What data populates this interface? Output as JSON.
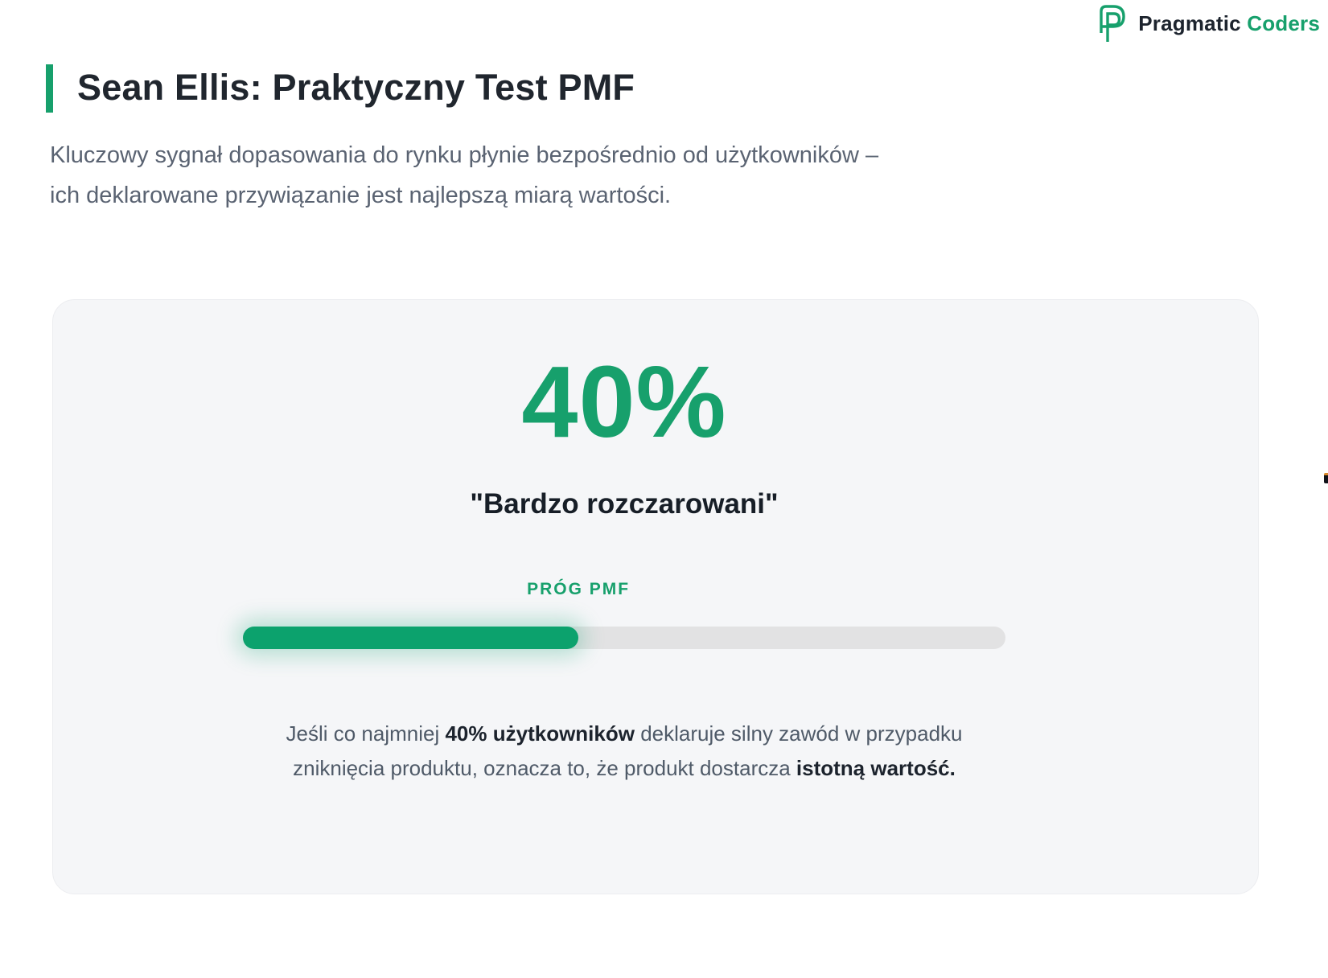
{
  "brand": {
    "name_primary": "Pragmatic",
    "name_secondary": "Coders",
    "logo_icon": "pragmatic-coders-p-monogram"
  },
  "header": {
    "title": "Sean Ellis: Praktyczny Test PMF",
    "subtitle_line1": "Kluczowy sygnał dopasowania do rynku płynie bezpośrednio od użytkowników –",
    "subtitle_line2": "ich deklarowane przywiązanie jest najlepszą miarą wartości."
  },
  "card": {
    "stat_value": "40%",
    "stat_label": "\"Bardzo rozczarowani\"",
    "threshold_label": "PRÓG PMF",
    "progress": {
      "fill_percent": 44,
      "threshold_percent": 40
    },
    "description": {
      "part1": "Jeśli co najmniej ",
      "bold1": "40% użytkowników",
      "part2": " deklaruje silny zawód w przypadku zniknięcia produktu, oznacza to, że produkt dostarcza ",
      "bold2": "istotną wartość."
    }
  },
  "colors": {
    "accent": "#17a06c",
    "bar": "#0ca26d",
    "dark": "#1d242e",
    "card_bg": "#f5f6f8",
    "track": "#e2e2e3"
  }
}
